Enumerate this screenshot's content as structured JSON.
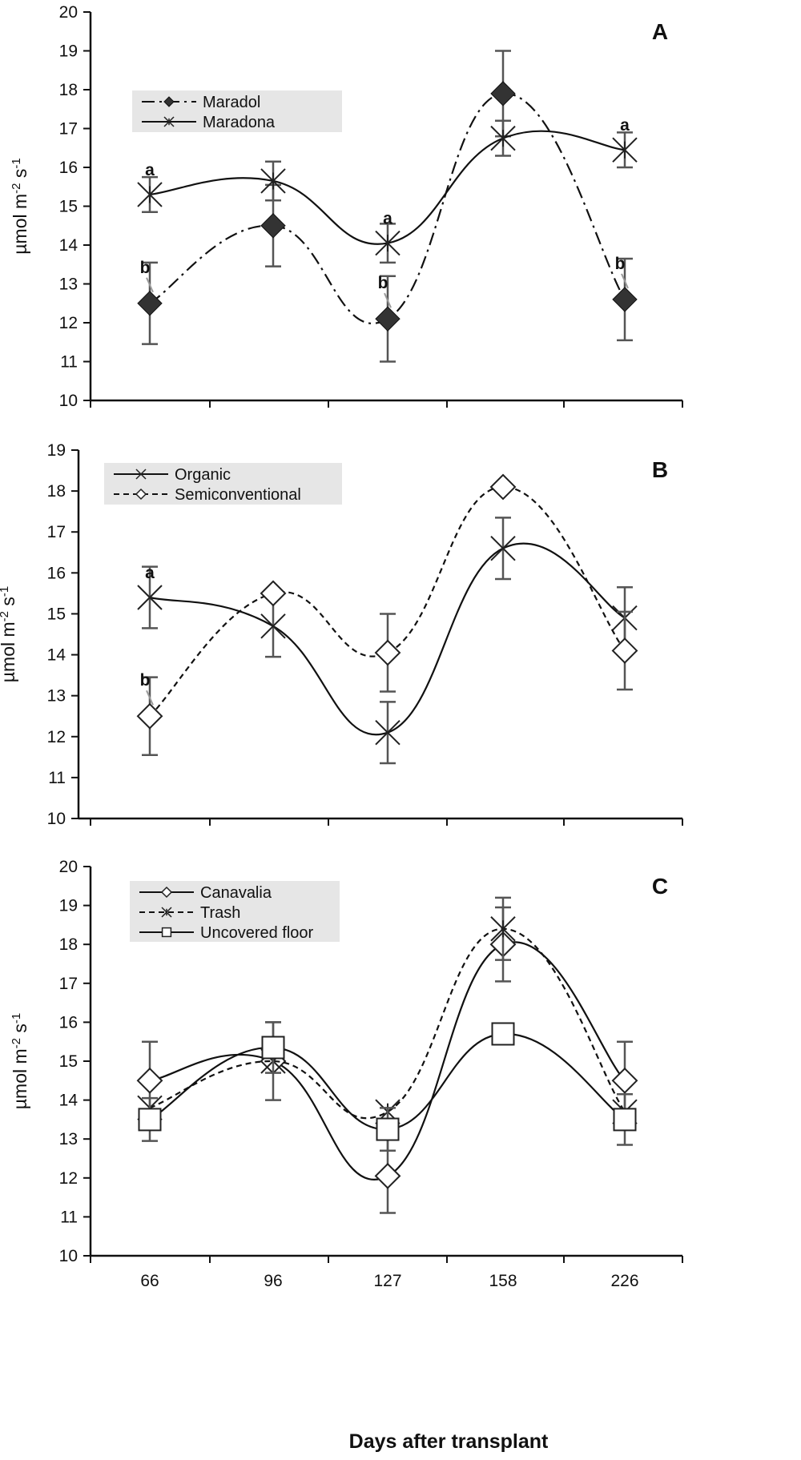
{
  "chart_data": [
    {
      "type": "line",
      "panel": "A",
      "title": "",
      "ylabel": "µmol m-2 s-1",
      "xlabel": "",
      "categories": [
        "66",
        "96",
        "127",
        "158",
        "226"
      ],
      "ylim": [
        10,
        20
      ],
      "yticks": [
        10,
        11,
        12,
        13,
        14,
        15,
        16,
        17,
        18,
        19,
        20
      ],
      "legend_position": "upper-left",
      "series": [
        {
          "name": "Maradol",
          "marker": "filled-diamond",
          "line": "dash-dot",
          "values": [
            12.5,
            14.5,
            12.1,
            17.9,
            12.6
          ],
          "errors": [
            1.05,
            1.05,
            1.1,
            1.1,
            1.05
          ],
          "labels": [
            "b",
            "",
            "b",
            "",
            "b"
          ]
        },
        {
          "name": "Maradona",
          "marker": "star",
          "line": "solid",
          "values": [
            15.3,
            15.65,
            14.05,
            16.75,
            16.45
          ],
          "errors": [
            0.45,
            0.5,
            0.5,
            0.45,
            0.45
          ],
          "labels": [
            "a",
            "",
            "a",
            "",
            "a"
          ]
        }
      ]
    },
    {
      "type": "line",
      "panel": "B",
      "title": "",
      "ylabel": "µmol m-2 s-1",
      "xlabel": "",
      "categories": [
        "66",
        "96",
        "127",
        "158",
        "226"
      ],
      "ylim": [
        10,
        19
      ],
      "yticks": [
        10,
        11,
        12,
        13,
        14,
        15,
        16,
        17,
        18,
        19
      ],
      "legend_position": "upper-left",
      "series": [
        {
          "name": "Organic",
          "marker": "x",
          "line": "solid",
          "values": [
            15.4,
            14.7,
            12.1,
            16.6,
            14.9
          ],
          "errors": [
            0.75,
            0.75,
            0.75,
            0.75,
            0.75
          ],
          "labels": [
            "a",
            "",
            "",
            "",
            ""
          ]
        },
        {
          "name": "Semiconventional",
          "marker": "open-diamond",
          "line": "dashed",
          "values": [
            12.5,
            15.5,
            14.05,
            18.1,
            14.1
          ],
          "errors": [
            0.95,
            0.0,
            0.95,
            0.0,
            0.95
          ],
          "labels": [
            "b",
            "",
            "",
            "",
            ""
          ]
        }
      ]
    },
    {
      "type": "line",
      "panel": "C",
      "title": "",
      "ylabel": "µmol m-2 s-1",
      "xlabel": "Days after transplant",
      "categories": [
        "66",
        "96",
        "127",
        "158",
        "226"
      ],
      "ylim": [
        10,
        20
      ],
      "yticks": [
        10,
        11,
        12,
        13,
        14,
        15,
        16,
        17,
        18,
        19,
        20
      ],
      "legend_position": "upper-left",
      "series": [
        {
          "name": "Canavalia",
          "marker": "open-diamond",
          "line": "solid",
          "values": [
            14.5,
            15.0,
            12.05,
            18.0,
            14.5
          ],
          "errors": [
            1.0,
            1.0,
            0.95,
            0.95,
            1.0
          ],
          "labels": [
            "",
            "",
            "",
            "",
            ""
          ]
        },
        {
          "name": "Trash",
          "marker": "star",
          "line": "dashed",
          "values": [
            13.8,
            15.0,
            13.7,
            18.4,
            13.7
          ],
          "errors": [
            0.0,
            0.0,
            0.0,
            0.8,
            0.0
          ],
          "labels": [
            "",
            "",
            "",
            "",
            ""
          ]
        },
        {
          "name": "Uncovered floor",
          "marker": "open-square",
          "line": "solid",
          "values": [
            13.5,
            15.35,
            13.25,
            15.7,
            13.5
          ],
          "errors": [
            0.55,
            0.65,
            0.55,
            0.0,
            0.65
          ],
          "labels": [
            "",
            "",
            "",
            "",
            ""
          ]
        }
      ]
    }
  ],
  "panel_letters": [
    "A",
    "B",
    "C"
  ],
  "ylabel_text": "µmol m",
  "ylabel_sup1": "-2",
  "ylabel_mid": " s",
  "ylabel_sup2": "-1",
  "xlabel_text": "Days after transplant"
}
